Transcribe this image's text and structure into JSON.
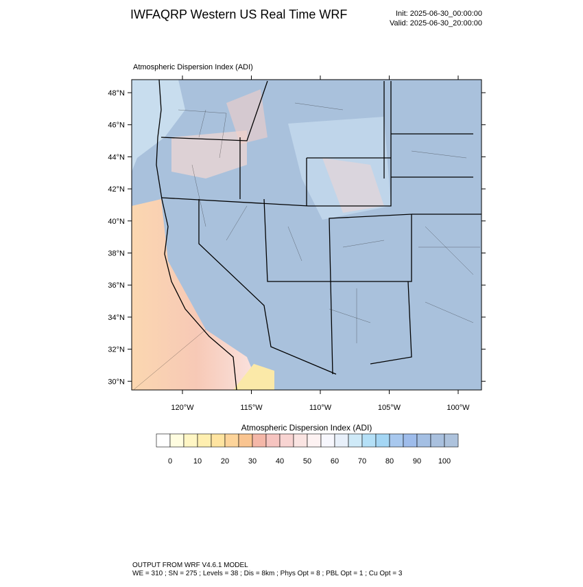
{
  "header": {
    "title": "IWFAQRP Western US Real Time WRF",
    "init": "Init: 2025-06-30_00:00:00",
    "valid": "Valid: 2025-06-30_20:00:00"
  },
  "map": {
    "title": "Atmospheric Dispersion Index   (ADI)",
    "lat_labels": [
      "48°N",
      "46°N",
      "44°N",
      "42°N",
      "40°N",
      "38°N",
      "36°N",
      "34°N",
      "32°N",
      "30°N"
    ],
    "lon_labels": [
      "120°W",
      "115°W",
      "110°W",
      "105°W",
      "100°W"
    ]
  },
  "colorbar": {
    "title": "Atmospheric Dispersion Index  (ADI)",
    "colors": [
      "#ffffff",
      "#fffde0",
      "#fff6c4",
      "#ffefb0",
      "#ffe4a0",
      "#fdd49a",
      "#f9c490",
      "#f4b7a8",
      "#f6c4c0",
      "#f8d4d2",
      "#fae4e2",
      "#fdf2f2",
      "#f7f7fd",
      "#e8f0fa",
      "#cfeaf8",
      "#b4e0f7",
      "#a4d6f4",
      "#a8c8ee",
      "#9ebceb",
      "#a4bfe3",
      "#a9c0de",
      "#adc2dc"
    ],
    "ticks": [
      "0",
      "10",
      "20",
      "30",
      "40",
      "50",
      "60",
      "70",
      "80",
      "90",
      "100"
    ]
  },
  "footer": {
    "line1": "OUTPUT FROM WRF V4.6.1 MODEL",
    "line2": "WE = 310 ; SN = 275 ; Levels = 38 ; Dis = 8km ; Phys Opt = 8 ; PBL Opt = 1 ; Cu Opt = 3"
  }
}
